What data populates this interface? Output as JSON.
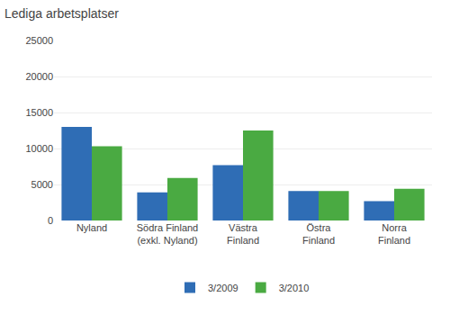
{
  "chart_data": {
    "type": "bar",
    "title": "Lediga arbetsplatser",
    "categories": [
      "Nyland",
      "Södra Finland\n(exkl. Nyland)",
      "Västra\nFinland",
      "Östra\nFinland",
      "Norra\nFinland"
    ],
    "series": [
      {
        "name": "3/2009",
        "color": "#2f6db5",
        "values": [
          13000,
          3900,
          7700,
          4100,
          2700
        ]
      },
      {
        "name": "3/2010",
        "color": "#4aaa42",
        "values": [
          10300,
          5900,
          12500,
          4100,
          4400
        ]
      }
    ],
    "ylim": [
      0,
      25000
    ],
    "yticks": [
      0,
      5000,
      10000,
      15000,
      20000,
      25000
    ],
    "grid": true,
    "legend": "bottom"
  }
}
